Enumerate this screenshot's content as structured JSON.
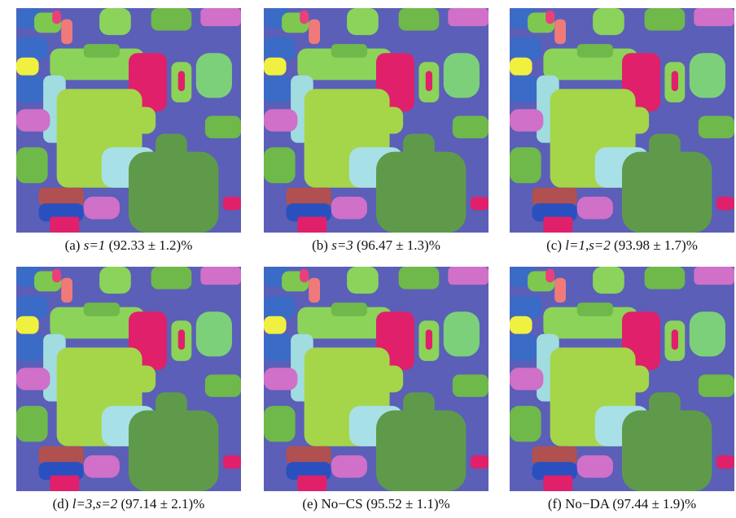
{
  "panels": [
    {
      "label": "(a)",
      "setting": "s=1",
      "accuracy": "(92.33 ± 1.2)%"
    },
    {
      "label": "(b)",
      "setting": "s=3",
      "accuracy": "(96.47 ± 1.3)%"
    },
    {
      "label": "(c)",
      "setting": "l=1,s=2",
      "accuracy": "(93.98 ± 1.7)%"
    },
    {
      "label": "(d)",
      "setting": "l=3,s=2",
      "accuracy": "(97.14 ± 2.1)%"
    },
    {
      "label": "(e)",
      "setting": "No−CS",
      "accuracy": "(95.52 ± 1.1)%"
    },
    {
      "label": "(f)",
      "setting": "No−DA",
      "accuracy": "(97.44 ± 1.9)%"
    }
  ]
}
